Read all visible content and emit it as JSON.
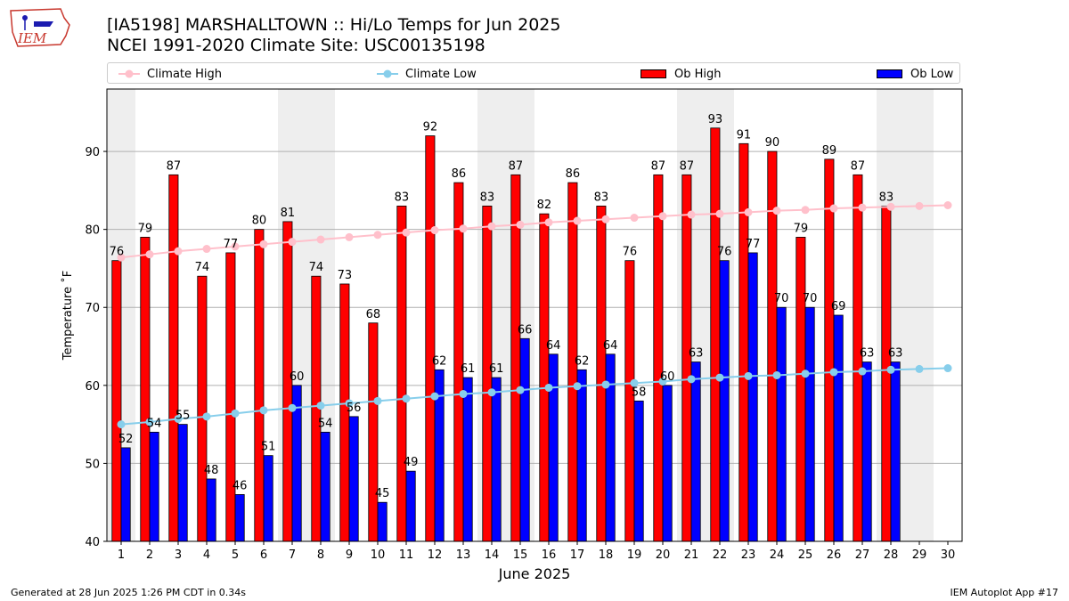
{
  "header": {
    "title_line1": "[IA5198] MARSHALLTOWN :: Hi/Lo Temps for Jun 2025",
    "title_line2": "NCEI 1991-2020 Climate Site: USC00135198",
    "logo_text": "IEM"
  },
  "legend": {
    "climate_high": "Climate High",
    "climate_low": "Climate Low",
    "ob_high": "Ob High",
    "ob_low": "Ob Low"
  },
  "colors": {
    "climate_high": "#ffc0cb",
    "climate_low": "#87ceeb",
    "ob_high": "#ff0000",
    "ob_low": "#0000ff",
    "weekend_shade": "#eeeeee",
    "grid": "#b0b0b0"
  },
  "chart_data": {
    "type": "bar",
    "xlabel": "June 2025",
    "ylabel": "Temperature ˚F",
    "ylim": [
      40,
      98
    ],
    "yticks": [
      40,
      50,
      60,
      70,
      80,
      90
    ],
    "grid": "horizontal",
    "legend_position": "top",
    "days": [
      1,
      2,
      3,
      4,
      5,
      6,
      7,
      8,
      9,
      10,
      11,
      12,
      13,
      14,
      15,
      16,
      17,
      18,
      19,
      20,
      21,
      22,
      23,
      24,
      25,
      26,
      27,
      28,
      29,
      30
    ],
    "weekend_days": [
      1,
      7,
      8,
      14,
      15,
      21,
      22,
      28,
      29
    ],
    "series": [
      {
        "name": "Ob High",
        "kind": "bar",
        "values": [
          76,
          79,
          87,
          74,
          77,
          80,
          81,
          74,
          73,
          68,
          83,
          92,
          86,
          83,
          87,
          82,
          86,
          83,
          76,
          87,
          87,
          93,
          91,
          90,
          79,
          89,
          87,
          83,
          null,
          null
        ]
      },
      {
        "name": "Ob Low",
        "kind": "bar",
        "values": [
          52,
          54,
          55,
          48,
          46,
          51,
          60,
          54,
          56,
          45,
          49,
          62,
          61,
          61,
          66,
          64,
          62,
          64,
          58,
          60,
          63,
          76,
          77,
          70,
          70,
          69,
          63,
          63,
          null,
          null
        ]
      },
      {
        "name": "Climate High",
        "kind": "line",
        "values": [
          76.4,
          76.8,
          77.2,
          77.5,
          77.8,
          78.1,
          78.4,
          78.7,
          79.0,
          79.3,
          79.6,
          79.9,
          80.1,
          80.4,
          80.6,
          80.9,
          81.1,
          81.3,
          81.5,
          81.7,
          81.9,
          82.0,
          82.2,
          82.4,
          82.5,
          82.7,
          82.8,
          82.9,
          83.0,
          83.1
        ]
      },
      {
        "name": "Climate Low",
        "kind": "line",
        "values": [
          55.0,
          55.3,
          55.7,
          56.0,
          56.4,
          56.8,
          57.1,
          57.4,
          57.7,
          58.0,
          58.3,
          58.6,
          58.9,
          59.1,
          59.4,
          59.7,
          59.9,
          60.1,
          60.3,
          60.5,
          60.8,
          61.0,
          61.2,
          61.3,
          61.5,
          61.7,
          61.8,
          62.0,
          62.1,
          62.2
        ]
      }
    ]
  },
  "footer": {
    "generated": "Generated at 28 Jun 2025 1:26 PM CDT in 0.34s",
    "app": "IEM Autoplot App #17"
  }
}
